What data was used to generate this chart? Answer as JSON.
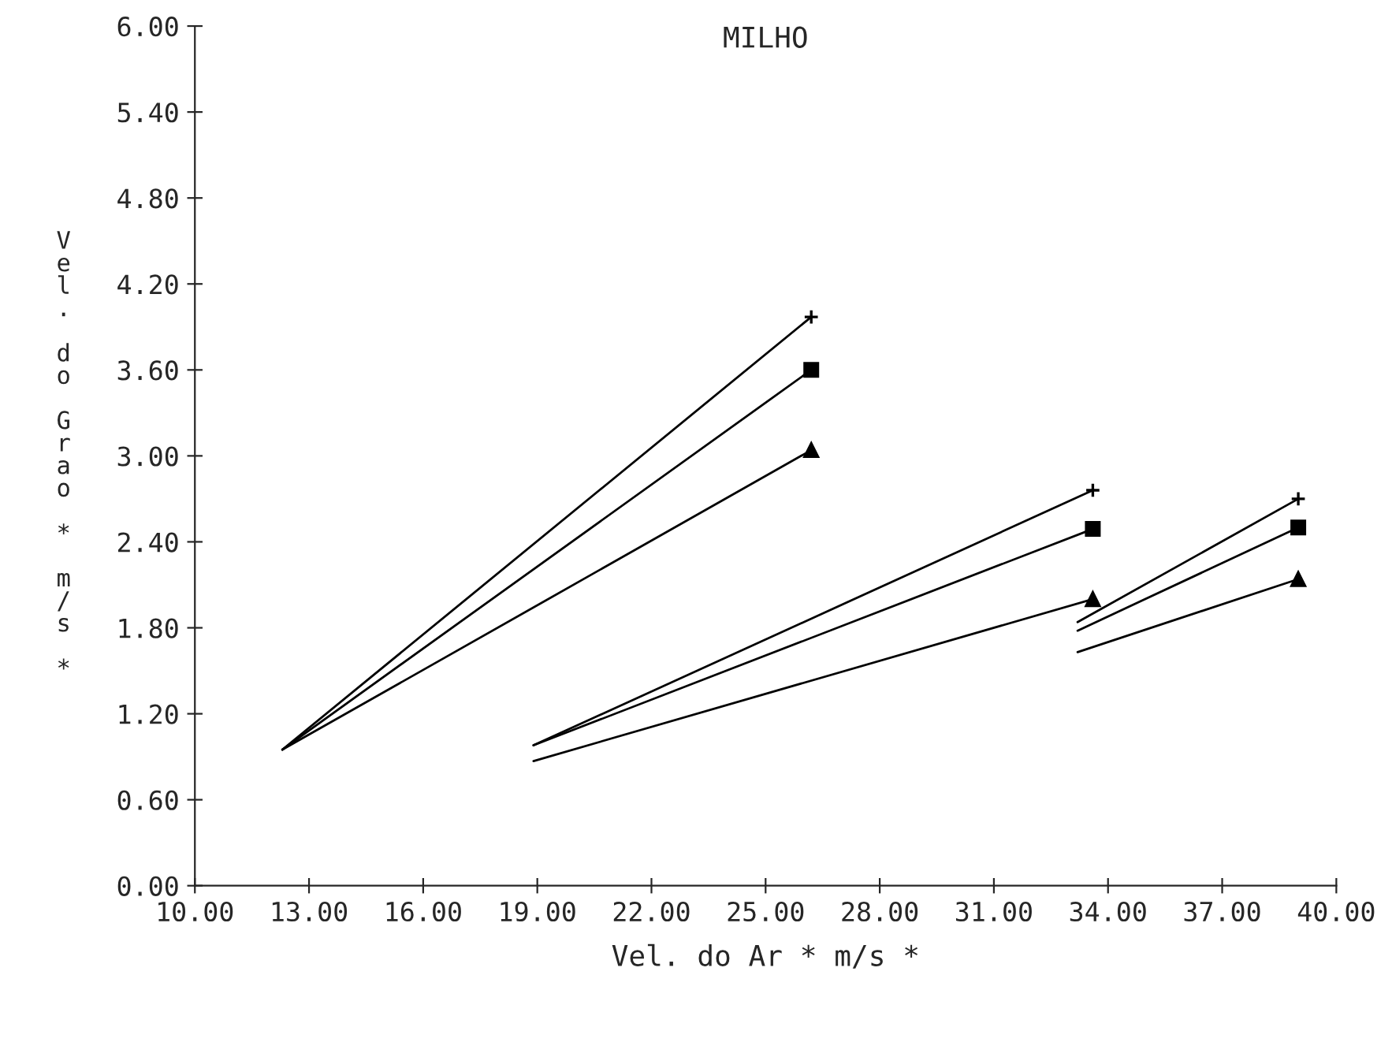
{
  "chart_data": {
    "type": "line",
    "title": "MILHO",
    "xlabel": "Vel. do Ar * m/s *",
    "ylabel": "Vel. do Grao * m/s *",
    "xlim": [
      10,
      40
    ],
    "ylim": [
      0,
      6
    ],
    "xticks": [
      {
        "value": 10,
        "label": "10.00"
      },
      {
        "value": 13,
        "label": "13.00"
      },
      {
        "value": 16,
        "label": "16.00"
      },
      {
        "value": 19,
        "label": "19.00"
      },
      {
        "value": 22,
        "label": "22.00"
      },
      {
        "value": 25,
        "label": "25.00"
      },
      {
        "value": 28,
        "label": "28.00"
      },
      {
        "value": 31,
        "label": "31.00"
      },
      {
        "value": 34,
        "label": "34.00"
      },
      {
        "value": 37,
        "label": "37.00"
      },
      {
        "value": 40,
        "label": "40.00"
      }
    ],
    "yticks": [
      {
        "value": 0,
        "label": "0.00"
      },
      {
        "value": 0.6,
        "label": "0.60"
      },
      {
        "value": 1.2,
        "label": "1.20"
      },
      {
        "value": 1.8,
        "label": "1.80"
      },
      {
        "value": 2.4,
        "label": "2.40"
      },
      {
        "value": 3.0,
        "label": "3.00"
      },
      {
        "value": 3.6,
        "label": "3.60"
      },
      {
        "value": 4.2,
        "label": "4.20"
      },
      {
        "value": 4.8,
        "label": "4.80"
      },
      {
        "value": 5.4,
        "label": "5.40"
      },
      {
        "value": 6.0,
        "label": "6.00"
      }
    ],
    "grid": false,
    "legend": false,
    "series": [
      {
        "color": "#000000",
        "marker": "cross",
        "x": [
          12.3,
          26.2
        ],
        "values": [
          0.95,
          3.97
        ]
      },
      {
        "color": "#000000",
        "marker": "square",
        "x": [
          12.3,
          26.2
        ],
        "values": [
          0.95,
          3.6
        ]
      },
      {
        "color": "#000000",
        "marker": "triangle",
        "x": [
          12.3,
          26.2
        ],
        "values": [
          0.95,
          3.04
        ]
      },
      {
        "color": "#000000",
        "marker": "cross",
        "x": [
          18.9,
          33.6
        ],
        "values": [
          0.98,
          2.76
        ]
      },
      {
        "color": "#000000",
        "marker": "square",
        "x": [
          18.9,
          33.6
        ],
        "values": [
          0.98,
          2.49
        ]
      },
      {
        "color": "#000000",
        "marker": "triangle",
        "x": [
          18.9,
          33.6
        ],
        "values": [
          0.87,
          2.0
        ]
      },
      {
        "color": "#000000",
        "marker": "cross",
        "x": [
          33.2,
          39.0
        ],
        "values": [
          1.84,
          2.7
        ]
      },
      {
        "color": "#000000",
        "marker": "square",
        "x": [
          33.2,
          39.0
        ],
        "values": [
          1.78,
          2.5
        ]
      },
      {
        "color": "#000000",
        "marker": "triangle",
        "x": [
          33.2,
          39.0
        ],
        "values": [
          1.63,
          2.14
        ]
      }
    ]
  }
}
